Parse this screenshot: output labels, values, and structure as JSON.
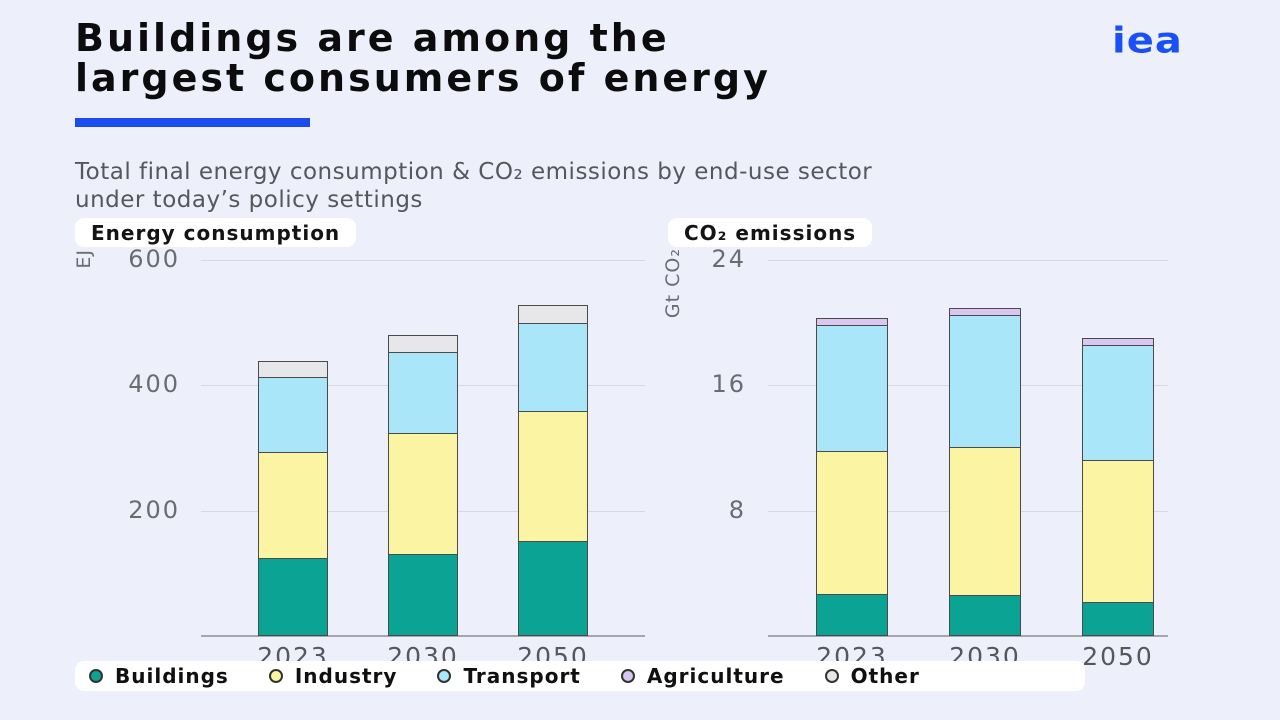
{
  "header": {
    "title_line1": "Buildings are among the",
    "title_line2": "largest consumers of energy",
    "logo": "iea",
    "subtitle_line1": "Total final energy consumption & CO₂ emissions by end-use sector",
    "subtitle_line2": "under today’s policy settings"
  },
  "colors": {
    "accent_blue": "#1b4cf0",
    "logo_blue": "#1850f5",
    "buildings": "#0ba394",
    "industry": "#fbf5a3",
    "transport": "#a9e6fa",
    "agriculture": "#d9c6f1",
    "other": "#e7e7e9",
    "bar_border": "#4a4a4a",
    "background": "#edf0fa"
  },
  "chart_data": [
    {
      "type": "bar",
      "stacked": true,
      "title": "Energy consumption",
      "unit": "EJ",
      "categories": [
        "2023",
        "2030",
        "2050"
      ],
      "series": [
        {
          "name": "Buildings",
          "color": "buildings",
          "values": [
            124,
            131,
            152
          ]
        },
        {
          "name": "Industry",
          "color": "industry",
          "values": [
            170,
            195,
            209
          ]
        },
        {
          "name": "Transport",
          "color": "transport",
          "values": [
            122,
            131,
            142
          ]
        },
        {
          "name": "Other",
          "color": "other",
          "values": [
            27,
            29,
            31
          ]
        }
      ],
      "totals": [
        443,
        486,
        534
      ],
      "ylim": [
        0,
        600
      ],
      "yticks": [
        200,
        400,
        600
      ],
      "grid": true,
      "legend_position": "bottom"
    },
    {
      "type": "bar",
      "stacked": true,
      "title": "CO₂ emissions",
      "unit": "Gt CO₂",
      "categories": [
        "2023",
        "2030",
        "2050"
      ],
      "series": [
        {
          "name": "Buildings",
          "color": "buildings",
          "values": [
            2.7,
            2.6,
            2.2
          ]
        },
        {
          "name": "Industry",
          "color": "industry",
          "values": [
            9.2,
            9.5,
            9.1
          ]
        },
        {
          "name": "Transport",
          "color": "transport",
          "values": [
            8.1,
            8.5,
            7.4
          ]
        },
        {
          "name": "Agriculture",
          "color": "agriculture",
          "values": [
            0.5,
            0.5,
            0.5
          ]
        }
      ],
      "totals": [
        20.5,
        21.1,
        19.2
      ],
      "ylim": [
        0,
        24
      ],
      "yticks": [
        8,
        16,
        24
      ],
      "grid": true,
      "legend_position": "bottom"
    }
  ],
  "legend": {
    "items": [
      {
        "label": "Buildings",
        "color": "buildings"
      },
      {
        "label": "Industry",
        "color": "industry"
      },
      {
        "label": "Transport",
        "color": "transport"
      },
      {
        "label": "Agriculture",
        "color": "agriculture"
      },
      {
        "label": "Other",
        "color": "other"
      }
    ]
  }
}
